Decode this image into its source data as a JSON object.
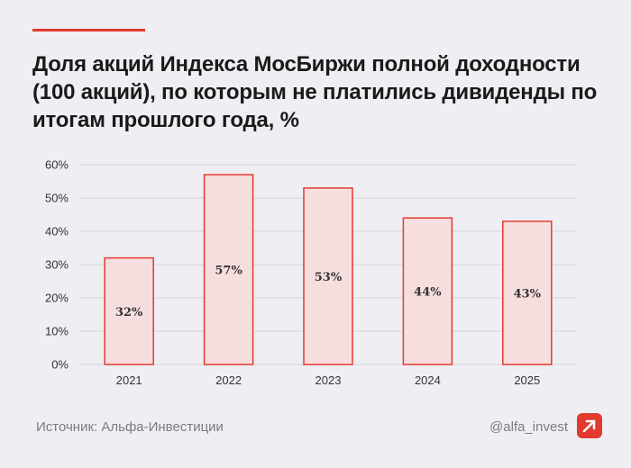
{
  "title": "Доля акций Индекса МосБиржи полной доходности (100 акций), по которым не платились дивиденды по итогам прошлого года, %",
  "footer": {
    "source": "Источник: Альфа-Инвестиции",
    "handle": "@alfa_invest",
    "logo_icon": "alfa-logo-icon"
  },
  "colors": {
    "accent": "#e23a2e",
    "bar_fill": "#f7dede",
    "bar_stroke": "#e23a2e",
    "grid": "#d6d6da"
  },
  "chart_data": {
    "type": "bar",
    "title": "Доля акций Индекса МосБиржи полной доходности (100 акций), по которым не платились дивиденды по итогам прошлого года, %",
    "xlabel": "",
    "ylabel": "",
    "categories": [
      "2021",
      "2022",
      "2023",
      "2024",
      "2025"
    ],
    "values": [
      32,
      57,
      53,
      44,
      43
    ],
    "data_labels": [
      "32%",
      "57%",
      "53%",
      "44%",
      "43%"
    ],
    "y_ticks": [
      "0%",
      "10%",
      "20%",
      "30%",
      "40%",
      "50%",
      "60%"
    ],
    "ylim": [
      0,
      60
    ],
    "grid": true,
    "legend": "none"
  }
}
